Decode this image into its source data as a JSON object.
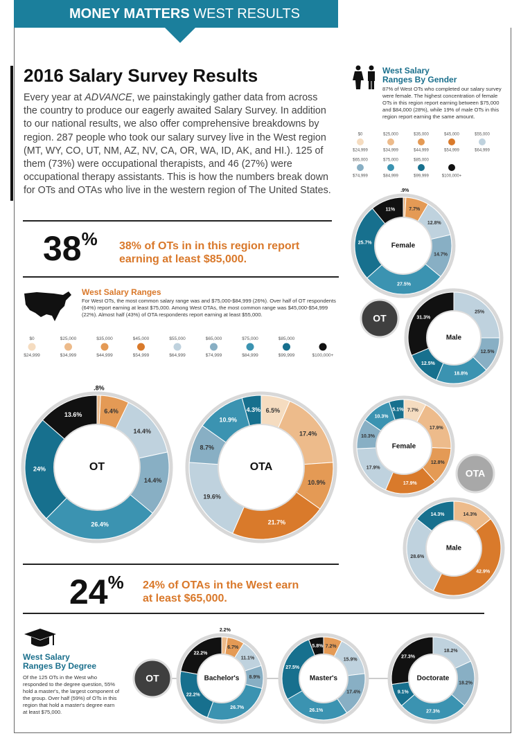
{
  "header": {
    "title_bold": "MONEY MATTERS",
    "title_rest": "WEST RESULTS"
  },
  "intro": {
    "title": "2016 Salary Survey Results",
    "text_1": "Every year at ",
    "emphasis": "ADVANCE",
    "text_2": ", we painstakingly gather data from across the country to produce our eagerly awaited Salary Survey. In addition to our national results, we also offer comprehensive breakdowns by region. 287 people who took our salary survey live in the West region (MT, WY, CO, UT, NM, AZ, NV, CA, OR, WA, ID, AK, and HI.). 125 of them (73%) were occupational therapists, and 46 (27%) were occupational therapy assistants. This is how the numbers break down for OTs and OTAs who live in the western region of The United States."
  },
  "callout_1": {
    "number": "38",
    "unit": "%",
    "text": "38% of OTs in in this region report earning at least $85,000."
  },
  "callout_2": {
    "number": "24",
    "unit": "%",
    "text": "24% of OTAs in the West earn at least $65,000."
  },
  "ranges_section": {
    "heading": "West Salary Ranges",
    "text": "For West OTs, the most common salary range was and $75,000-$84,999 (26%). Over half of OT respondents (64%) report earning at least $75,000. Among West OTAs, the most common range was $45,000-$54,999 (22%). Almost half (43%) of OTA respondents report earning at least $55,000."
  },
  "gender_section": {
    "heading_1": "West Salary",
    "heading_2": "Ranges By Gender",
    "text": "87% of West OTs who completed our salary survey were female. The highest concentration of female OTs in this region report earning between $75,000 and $84,000 (28%), while 19% of male OTs in this region report earning the same amount.",
    "badge_ot": "OT",
    "badge_ota": "OTA"
  },
  "degree_section": {
    "heading_1": "West Salary",
    "heading_2": "Ranges By Degree",
    "text": "Of the 125 OTs in the West who responded to the degree question, 55% hold a master's, the largest component of the group. Over half (59%) of OTs in this region that hold a master's degree earn at least $75,000.",
    "badge": "OT"
  },
  "legend_main": [
    {
      "from": "$0",
      "to": "$24,999",
      "color": "#f5dcc0"
    },
    {
      "from": "$25,000",
      "to": "$34,999",
      "color": "#edbb8b"
    },
    {
      "from": "$35,000",
      "to": "$44,999",
      "color": "#e49a55"
    },
    {
      "from": "$45,000",
      "to": "$54,999",
      "color": "#d97a2b"
    },
    {
      "from": "$55,000",
      "to": "$64,999",
      "color": "#bfd2de"
    },
    {
      "from": "$65,000",
      "to": "$74,999",
      "color": "#88afc4"
    },
    {
      "from": "$75,000",
      "to": "$84,999",
      "color": "#3b93b1"
    },
    {
      "from": "$85,000",
      "to": "$99,999",
      "color": "#17708e"
    },
    {
      "to": "$100,000+",
      "color": "#111111"
    }
  ],
  "legend_gender": [
    {
      "from": "$0",
      "to": "$24,999",
      "color": "#f5dcc0"
    },
    {
      "from": "$25,000",
      "to": "$34,999",
      "color": "#edbb8b"
    },
    {
      "from": "$35,000",
      "to": "$44,999",
      "color": "#e49a55"
    },
    {
      "from": "$45,000",
      "to": "$54,999",
      "color": "#d97a2b"
    },
    {
      "from": "$55,000",
      "to": "$64,999",
      "color": "#bfd2de"
    },
    {
      "from": "$65,000",
      "to": "$74,999",
      "color": "#88afc4"
    },
    {
      "from": "$75,000",
      "to": "$84,999",
      "color": "#3b93b1"
    },
    {
      "from": "$85,000",
      "to": "$99,999",
      "color": "#17708e"
    },
    {
      "to": "$100,000+",
      "color": "#111111"
    }
  ],
  "chart_data": [
    {
      "type": "donut",
      "label": "OT",
      "values": [
        0.8,
        6.4,
        14.4,
        14.4,
        26.4,
        24,
        13.6
      ],
      "value_labels": [
        ".8%",
        "6.4%",
        "14.4%",
        "14.4%",
        "26.4%",
        "24%",
        "13.6%"
      ],
      "colors": [
        "#edbb8b",
        "#e49a55",
        "#bfd2de",
        "#88afc4",
        "#3b93b1",
        "#17708e",
        "#111111"
      ]
    },
    {
      "type": "donut",
      "label": "OTA",
      "values": [
        6.5,
        17.4,
        10.9,
        21.7,
        19.6,
        8.7,
        10.9,
        4.3
      ],
      "value_labels": [
        "6.5%",
        "17.4%",
        "10.9%",
        "21.7%",
        "19.6%",
        "8.7%",
        "10.9%",
        "4.3%"
      ],
      "colors": [
        "#f5dcc0",
        "#edbb8b",
        "#e49a55",
        "#d97a2b",
        "#bfd2de",
        "#88afc4",
        "#3b93b1",
        "#17708e"
      ]
    },
    {
      "type": "donut",
      "label": "Female",
      "values": [
        0.9,
        7.7,
        12.8,
        14.7,
        27.5,
        25.7,
        11
      ],
      "value_labels": [
        ".9%",
        "7.7%",
        "12.8%",
        "14.7%",
        "27.5%",
        "25.7%",
        "11%"
      ],
      "colors": [
        "#edbb8b",
        "#e49a55",
        "#bfd2de",
        "#88afc4",
        "#3b93b1",
        "#17708e",
        "#111111"
      ]
    },
    {
      "type": "donut",
      "label": "Male",
      "values": [
        25,
        12.5,
        18.8,
        12.5,
        31.3
      ],
      "value_labels": [
        "25%",
        "12.5%",
        "18.8%",
        "12.5%",
        "31.3%"
      ],
      "colors": [
        "#bfd2de",
        "#88afc4",
        "#3b93b1",
        "#17708e",
        "#111111"
      ]
    },
    {
      "type": "donut",
      "label": "Female",
      "values": [
        7.7,
        17.9,
        12.8,
        17.9,
        17.9,
        10.3,
        10.3,
        5.1
      ],
      "value_labels": [
        "7.7%",
        "17.9%",
        "12.8%",
        "17.9%",
        "17.9%",
        "10.3%",
        "10.3%",
        "5.1%"
      ],
      "colors": [
        "#f5dcc0",
        "#edbb8b",
        "#e49a55",
        "#d97a2b",
        "#bfd2de",
        "#88afc4",
        "#3b93b1",
        "#17708e"
      ]
    },
    {
      "type": "donut",
      "label": "Male",
      "values": [
        14.3,
        42.9,
        28.6,
        14.3
      ],
      "value_labels": [
        "14.3%",
        "42.9%",
        "28.6%",
        "14.3%"
      ],
      "colors": [
        "#edbb8b",
        "#d97a2b",
        "#bfd2de",
        "#17708e"
      ]
    },
    {
      "type": "donut",
      "label": "Bachelor's",
      "values": [
        2.2,
        6.7,
        11.1,
        8.9,
        26.7,
        22.2,
        22.2
      ],
      "value_labels": [
        "2.2%",
        "6.7%",
        "11.1%",
        "8.9%",
        "26.7%",
        "22.2%",
        "22.2%"
      ],
      "colors": [
        "#edbb8b",
        "#e49a55",
        "#bfd2de",
        "#88afc4",
        "#3b93b1",
        "#17708e",
        "#111111"
      ]
    },
    {
      "type": "donut",
      "label": "Master's",
      "values": [
        7.2,
        15.9,
        17.4,
        26.1,
        27.5,
        5.8
      ],
      "value_labels": [
        "7.2%",
        "15.9%",
        "17.4%",
        "26.1%",
        "27.5%",
        "5.8%"
      ],
      "colors": [
        "#e49a55",
        "#bfd2de",
        "#88afc4",
        "#3b93b1",
        "#17708e",
        "#111111"
      ]
    },
    {
      "type": "donut",
      "label": "Doctorate",
      "values": [
        18.2,
        18.2,
        27.3,
        9.1,
        27.3
      ],
      "value_labels": [
        "18.2%",
        "18.2%",
        "27.3%",
        "9.1%",
        "27.3%"
      ],
      "colors": [
        "#bfd2de",
        "#88afc4",
        "#3b93b1",
        "#17708e",
        "#111111"
      ]
    }
  ]
}
